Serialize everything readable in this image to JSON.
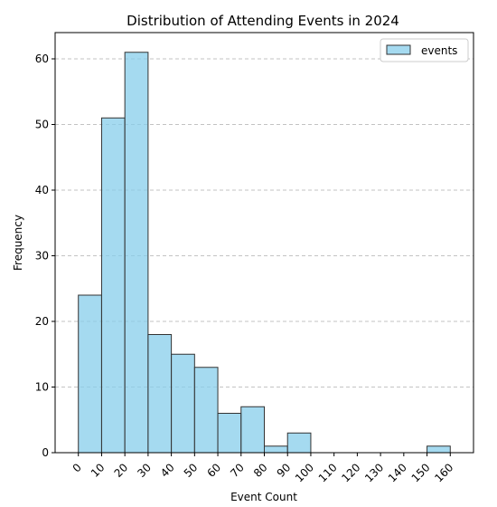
{
  "chart_data": {
    "type": "bar",
    "title": "Distribution of Attending Events in 2024",
    "xlabel": "Event Count",
    "ylabel": "Frequency",
    "xlim": [
      -10,
      170
    ],
    "ylim": [
      0,
      64
    ],
    "bin_edges": [
      0,
      10,
      20,
      30,
      40,
      50,
      60,
      70,
      80,
      90,
      100,
      110,
      120,
      130,
      140,
      150,
      160
    ],
    "xticks": [
      "0",
      "10",
      "20",
      "30",
      "40",
      "50",
      "60",
      "70",
      "80",
      "90",
      "100",
      "110",
      "120",
      "130",
      "140",
      "150",
      "160"
    ],
    "yticks": [
      "0",
      "10",
      "20",
      "30",
      "40",
      "50",
      "60"
    ],
    "series": [
      {
        "name": "events",
        "color": "#87ceeb",
        "values": [
          24,
          51,
          61,
          18,
          15,
          13,
          6,
          7,
          1,
          3,
          0,
          0,
          0,
          0,
          0,
          1
        ]
      }
    ],
    "grid": "y-dashed",
    "legend_position": "top-right"
  }
}
